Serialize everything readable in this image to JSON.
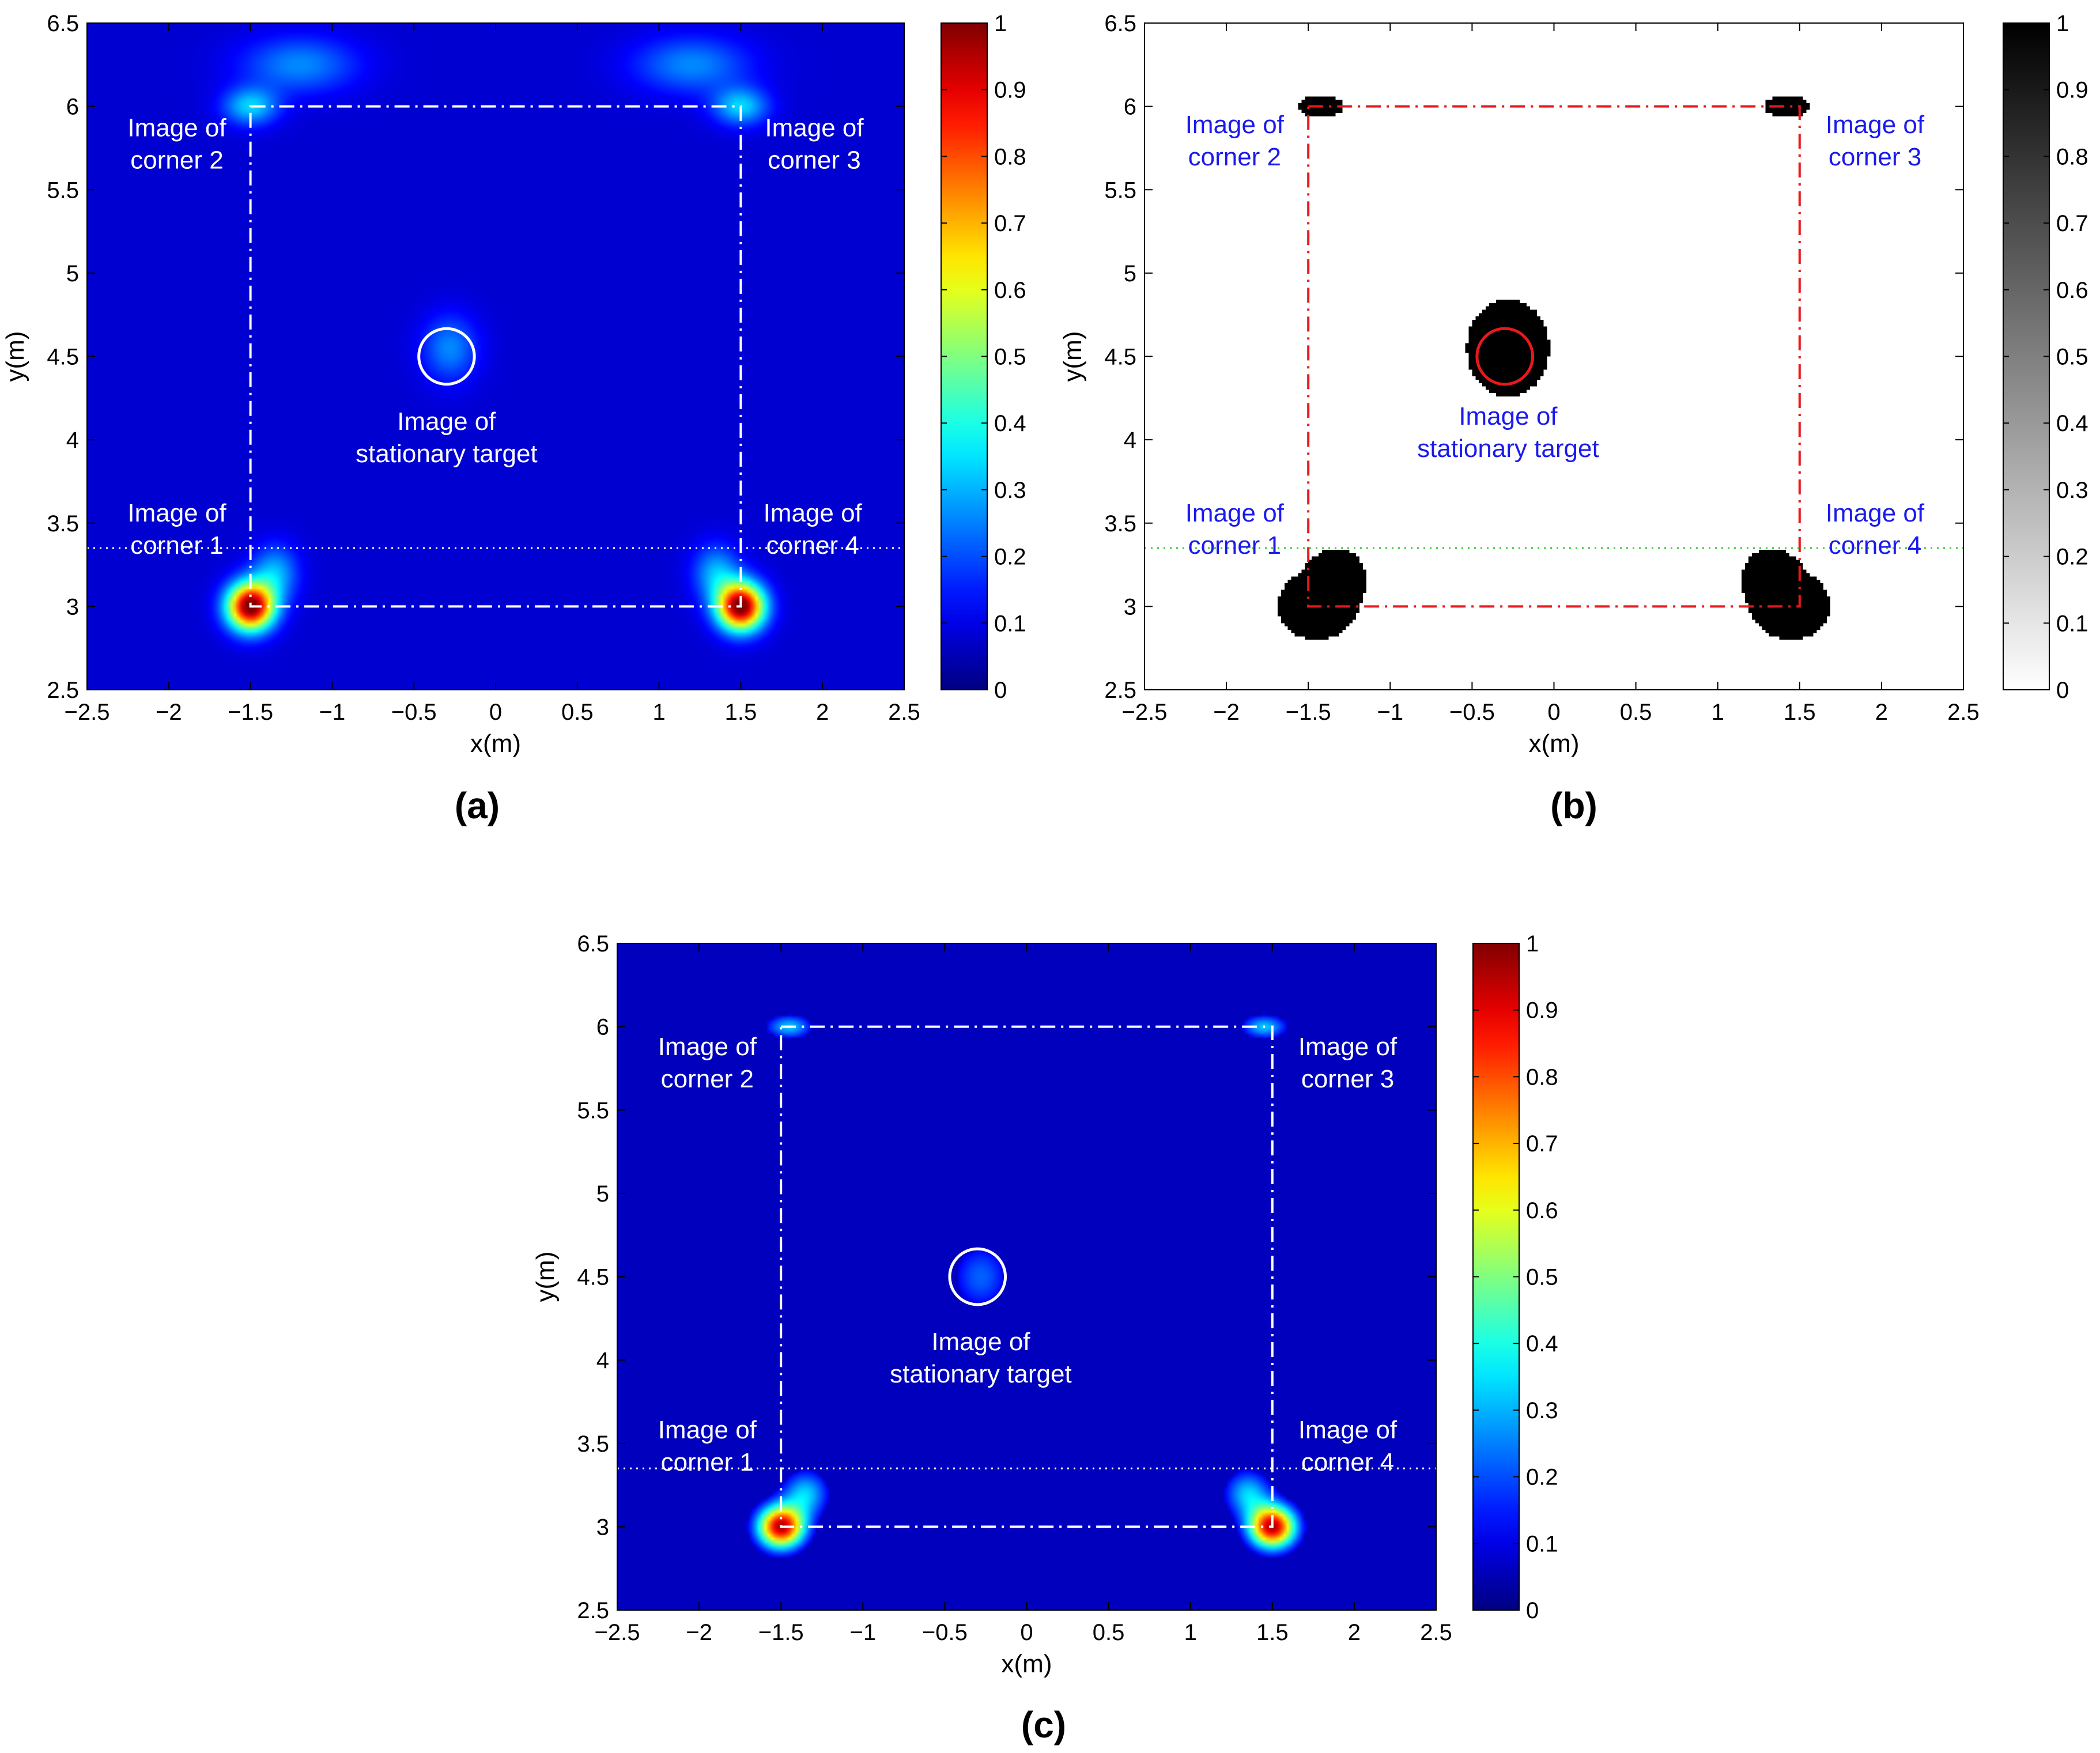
{
  "chart_data": [
    {
      "id": "a",
      "type": "heatmap",
      "caption": "(a)",
      "xlabel": "x(m)",
      "ylabel": "y(m)",
      "xlim": [
        -2.5,
        2.5
      ],
      "ylim": [
        2.5,
        6.5
      ],
      "xticks": [
        -2.5,
        -2,
        -1.5,
        -1,
        -0.5,
        0,
        0.5,
        1,
        1.5,
        2,
        2.5
      ],
      "yticks": [
        2.5,
        3,
        3.5,
        4,
        4.5,
        5,
        5.5,
        6,
        6.5
      ],
      "colormap": "jet",
      "colorbar": {
        "min": 0,
        "max": 1,
        "ticks": [
          0,
          0.1,
          0.2,
          0.3,
          0.4,
          0.5,
          0.6,
          0.7,
          0.8,
          0.9,
          1
        ]
      },
      "background_level": 0.08,
      "sources": [
        {
          "x": -1.5,
          "y": 3.0,
          "sx": 0.1,
          "sy": 0.1,
          "amp": 0.95
        },
        {
          "x": 1.5,
          "y": 3.0,
          "sx": 0.1,
          "sy": 0.1,
          "amp": 0.95
        },
        {
          "x": -1.35,
          "y": 3.2,
          "sx": 0.1,
          "sy": 0.12,
          "amp": 0.22
        },
        {
          "x": 1.35,
          "y": 3.2,
          "sx": 0.1,
          "sy": 0.12,
          "amp": 0.22
        },
        {
          "x": -1.5,
          "y": 6.0,
          "sx": 0.12,
          "sy": 0.08,
          "amp": 0.25
        },
        {
          "x": 1.5,
          "y": 6.0,
          "sx": 0.12,
          "sy": 0.08,
          "amp": 0.25
        },
        {
          "x": -1.2,
          "y": 6.25,
          "sx": 0.25,
          "sy": 0.12,
          "amp": 0.18
        },
        {
          "x": 1.2,
          "y": 6.25,
          "sx": 0.25,
          "sy": 0.12,
          "amp": 0.18
        },
        {
          "x": -0.28,
          "y": 4.55,
          "sx": 0.12,
          "sy": 0.14,
          "amp": 0.18
        }
      ],
      "room_rectangle": {
        "x": [
          -1.5,
          1.5
        ],
        "y": [
          3.0,
          6.0
        ],
        "style": "dash-dot",
        "color": "#ffffff"
      },
      "dotted_line_y": 3.35,
      "dotted_line_color": "#ffffff",
      "target_circle": {
        "x": -0.3,
        "y": 4.5,
        "r": 0.17,
        "color": "#ffffff"
      },
      "annotation_color": "#ffffff",
      "annotations": [
        {
          "lines": [
            "Image of",
            "corner 2"
          ],
          "x": -1.95,
          "y": 5.82
        },
        {
          "lines": [
            "Image of",
            "corner 3"
          ],
          "x": 1.95,
          "y": 5.82
        },
        {
          "lines": [
            "Image of",
            "corner 1"
          ],
          "x": -1.95,
          "y": 3.51
        },
        {
          "lines": [
            "Image of",
            "corner 4"
          ],
          "x": 1.94,
          "y": 3.51
        },
        {
          "lines": [
            "Image of",
            "stationary target"
          ],
          "x": -0.3,
          "y": 4.06
        }
      ]
    },
    {
      "id": "b",
      "type": "heatmap",
      "caption": "(b)",
      "xlabel": "x(m)",
      "ylabel": "y(m)",
      "xlim": [
        -2.5,
        2.5
      ],
      "ylim": [
        2.5,
        6.5
      ],
      "xticks": [
        -2.5,
        -2,
        -1.5,
        -1,
        -0.5,
        0,
        0.5,
        1,
        1.5,
        2,
        2.5
      ],
      "yticks": [
        2.5,
        3,
        3.5,
        4,
        4.5,
        5,
        5.5,
        6,
        6.5
      ],
      "colormap": "gray_inverted",
      "colorbar": {
        "min": 0,
        "max": 1,
        "ticks": [
          0,
          0.1,
          0.2,
          0.3,
          0.4,
          0.5,
          0.6,
          0.7,
          0.8,
          0.9,
          1
        ]
      },
      "threshold": 0.12,
      "background_level": 0,
      "sources": [
        {
          "x": -1.45,
          "y": 3.0,
          "sx": 0.12,
          "sy": 0.1,
          "amp": 0.9
        },
        {
          "x": 1.45,
          "y": 3.0,
          "sx": 0.12,
          "sy": 0.1,
          "amp": 0.9
        },
        {
          "x": -1.33,
          "y": 3.17,
          "sx": 0.1,
          "sy": 0.1,
          "amp": 0.6
        },
        {
          "x": 1.33,
          "y": 3.17,
          "sx": 0.1,
          "sy": 0.1,
          "amp": 0.6
        },
        {
          "x": -1.42,
          "y": 6.0,
          "sx": 0.1,
          "sy": 0.05,
          "amp": 0.3
        },
        {
          "x": 1.42,
          "y": 6.0,
          "sx": 0.1,
          "sy": 0.05,
          "amp": 0.3
        },
        {
          "x": -0.28,
          "y": 4.55,
          "sx": 0.13,
          "sy": 0.15,
          "amp": 0.8
        }
      ],
      "room_rectangle": {
        "x": [
          -1.5,
          1.5
        ],
        "y": [
          3.0,
          6.0
        ],
        "style": "dash-dot",
        "color": "#e8191c"
      },
      "dotted_line_y": 3.35,
      "dotted_line_color": "#3cc43c",
      "target_circle": {
        "x": -0.3,
        "y": 4.5,
        "r": 0.17,
        "color": "#e8191c"
      },
      "annotation_color": "#1a1aee",
      "annotations": [
        {
          "lines": [
            "Image of",
            "corner 2"
          ],
          "x": -1.95,
          "y": 5.84
        },
        {
          "lines": [
            "Image of",
            "corner 3"
          ],
          "x": 1.96,
          "y": 5.84
        },
        {
          "lines": [
            "Image of",
            "corner 1"
          ],
          "x": -1.95,
          "y": 3.51
        },
        {
          "lines": [
            "Image of",
            "corner 4"
          ],
          "x": 1.96,
          "y": 3.51
        },
        {
          "lines": [
            "Image of",
            "stationary target"
          ],
          "x": -0.28,
          "y": 4.09
        }
      ]
    },
    {
      "id": "c",
      "type": "heatmap",
      "caption": "(c)",
      "xlabel": "x(m)",
      "ylabel": "y(m)",
      "xlim": [
        -2.5,
        2.5
      ],
      "ylim": [
        2.5,
        6.5
      ],
      "xticks": [
        -2.5,
        -2,
        -1.5,
        -1,
        -0.5,
        0,
        0.5,
        1,
        1.5,
        2,
        2.5
      ],
      "yticks": [
        2.5,
        3,
        3.5,
        4,
        4.5,
        5,
        5.5,
        6,
        6.5
      ],
      "colormap": "jet",
      "colorbar": {
        "min": 0,
        "max": 1,
        "ticks": [
          0,
          0.1,
          0.2,
          0.3,
          0.4,
          0.5,
          0.6,
          0.7,
          0.8,
          0.9,
          1
        ]
      },
      "threshold": 0.12,
      "background_level": 0.06,
      "sources": [
        {
          "x": -1.5,
          "y": 3.0,
          "sx": 0.1,
          "sy": 0.09,
          "amp": 0.95
        },
        {
          "x": 1.5,
          "y": 3.0,
          "sx": 0.1,
          "sy": 0.09,
          "amp": 0.95
        },
        {
          "x": -1.35,
          "y": 3.2,
          "sx": 0.1,
          "sy": 0.1,
          "amp": 0.32
        },
        {
          "x": 1.35,
          "y": 3.2,
          "sx": 0.1,
          "sy": 0.1,
          "amp": 0.32
        },
        {
          "x": -1.45,
          "y": 6.0,
          "sx": 0.1,
          "sy": 0.05,
          "amp": 0.32
        },
        {
          "x": 1.45,
          "y": 6.0,
          "sx": 0.1,
          "sy": 0.05,
          "amp": 0.32
        },
        {
          "x": -0.28,
          "y": 4.5,
          "sx": 0.13,
          "sy": 0.15,
          "amp": 0.22
        }
      ],
      "room_rectangle": {
        "x": [
          -1.5,
          1.5
        ],
        "y": [
          3.0,
          6.0
        ],
        "style": "dash-dot",
        "color": "#ffffff"
      },
      "dotted_line_y": 3.35,
      "dotted_line_color": "#ffffff",
      "target_circle": {
        "x": -0.3,
        "y": 4.5,
        "r": 0.17,
        "color": "#ffffff"
      },
      "annotation_color": "#ffffff",
      "annotations": [
        {
          "lines": [
            "Image of",
            "corner 2"
          ],
          "x": -1.95,
          "y": 5.83
        },
        {
          "lines": [
            "Image of",
            "corner 3"
          ],
          "x": 1.96,
          "y": 5.83
        },
        {
          "lines": [
            "Image of",
            "corner 1"
          ],
          "x": -1.95,
          "y": 3.53
        },
        {
          "lines": [
            "Image of",
            "corner 4"
          ],
          "x": 1.96,
          "y": 3.53
        },
        {
          "lines": [
            "Image of",
            "stationary target"
          ],
          "x": -0.28,
          "y": 4.06
        }
      ]
    }
  ]
}
